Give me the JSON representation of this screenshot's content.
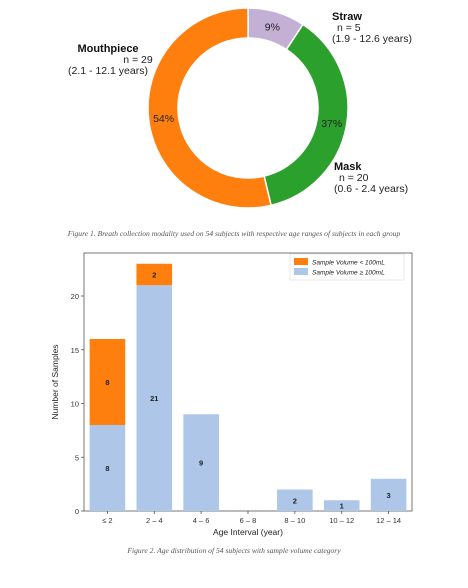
{
  "chart_data": [
    {
      "type": "pie",
      "donut": true,
      "slices": [
        {
          "label": "Mouthpiece",
          "n_text": "n = 29",
          "range_text": "(2.1 - 12.1 years)",
          "pct_text": "54%",
          "value": 29,
          "color": "#ff7f0e"
        },
        {
          "label": "Straw",
          "n_text": "n = 5",
          "range_text": "(1.9 - 12.6 years)",
          "pct_text": "9%",
          "value": 5,
          "color": "#c5b0d5"
        },
        {
          "label": "Mask",
          "n_text": "n = 20",
          "range_text": "(0.6 - 2.4 years)",
          "pct_text": "37%",
          "value": 20,
          "color": "#2ca02c"
        }
      ],
      "caption": "Figure 1. Breath collection modality used on 54 subjects with respective age ranges of subjects in each group"
    },
    {
      "type": "bar",
      "stacked": true,
      "categories": [
        "≤ 2",
        "2 – 4",
        "4 – 6",
        "6 – 8",
        "8 – 10",
        "10 – 12",
        "12 – 14"
      ],
      "series": [
        {
          "name": "Sample Volume ≥ 100mL",
          "values": [
            8,
            21,
            9,
            0,
            2,
            1,
            3
          ],
          "color": "#aec7e8"
        },
        {
          "name": "Sample Volume < 100mL",
          "values": [
            8,
            2,
            0,
            0,
            0,
            0,
            0
          ],
          "color": "#ff7f0e"
        }
      ],
      "legend": [
        {
          "name": "Sample Volume < 100mL",
          "color": "#ff7f0e"
        },
        {
          "name": "Sample Volume ≥ 100mL",
          "color": "#aec7e8"
        }
      ],
      "legend_position": "top-right",
      "xlabel": "Age Interval (year)",
      "ylabel": "Number of Samples",
      "ylim": [
        0,
        24
      ],
      "yticks": [
        0,
        5,
        10,
        15,
        20
      ],
      "grid": false,
      "caption": "Figure 2. Age distribution of 54 subjects with sample volume category"
    }
  ]
}
